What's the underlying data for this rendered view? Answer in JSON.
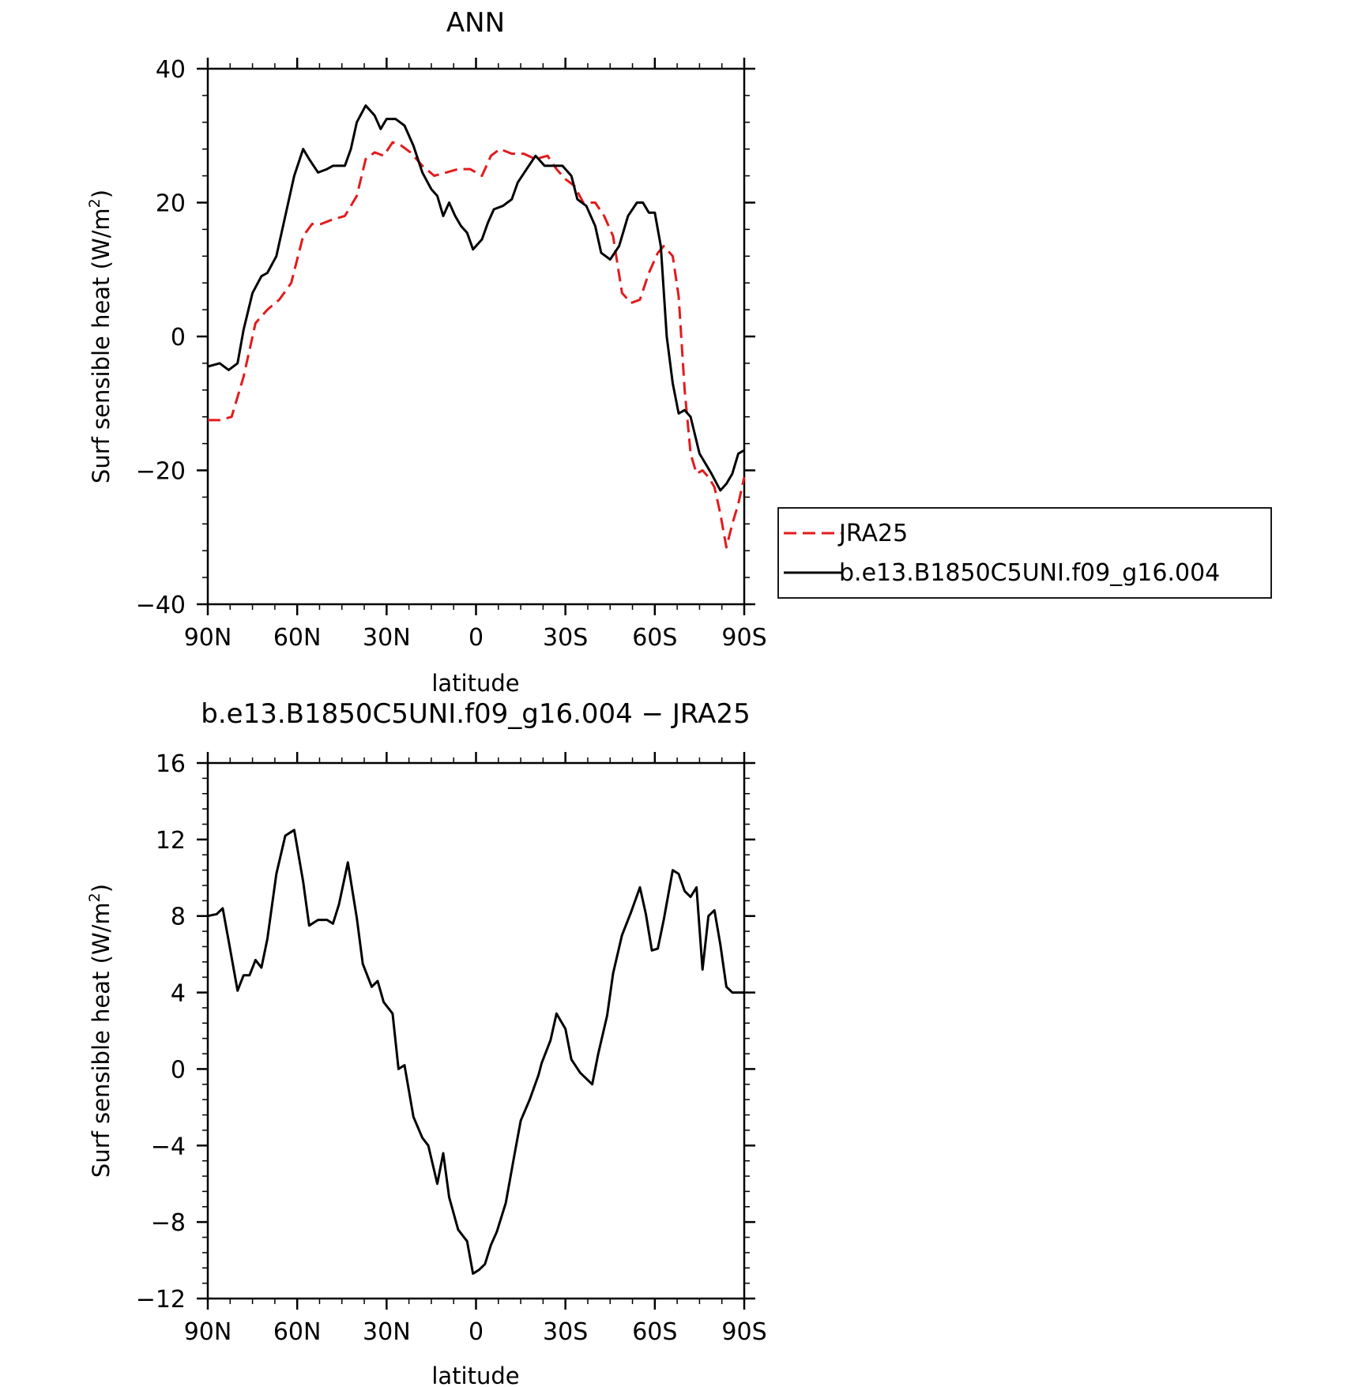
{
  "chart_data": [
    {
      "type": "line",
      "title": "ANN",
      "xlabel": "latitude",
      "ylabel": "Surf sensible heat (W/m²)",
      "ylabel_main": "Surf sensible heat (W/m",
      "ylabel_sup": "2",
      "ylabel_tail": ")",
      "xlim": [
        90,
        -90
      ],
      "ylim": [
        -40,
        40
      ],
      "x_ticks": [
        {
          "value": 90,
          "label": "90N"
        },
        {
          "value": 60,
          "label": "60N"
        },
        {
          "value": 30,
          "label": "30N"
        },
        {
          "value": 0,
          "label": "0"
        },
        {
          "value": -30,
          "label": "30S"
        },
        {
          "value": -60,
          "label": "60S"
        },
        {
          "value": -90,
          "label": "90S"
        }
      ],
      "y_ticks": [
        {
          "value": 40,
          "label": "40"
        },
        {
          "value": 20,
          "label": "20"
        },
        {
          "value": 0,
          "label": "0"
        },
        {
          "value": -20,
          "label": "−20"
        },
        {
          "value": -40,
          "label": "−40"
        }
      ],
      "grid": false,
      "legend_position": "right",
      "series": [
        {
          "name": "JRA25",
          "color": "#e31a1c",
          "dash": "dashed",
          "x": [
            90,
            86,
            82,
            78,
            74,
            70,
            66,
            62,
            58,
            55,
            52,
            48,
            44,
            40,
            37,
            34,
            31,
            28,
            25,
            22,
            18,
            14,
            10,
            6,
            2,
            -2,
            -5,
            -8,
            -12,
            -16,
            -20,
            -24,
            -27,
            -30,
            -33,
            -36,
            -40,
            -43,
            -46,
            -49,
            -52,
            -55,
            -58,
            -61,
            -63,
            -66,
            -68,
            -70,
            -72,
            -74,
            -76,
            -78,
            -80,
            -82,
            -84,
            -86,
            -88,
            -90
          ],
          "y": [
            -12.5,
            -12.5,
            -12,
            -6,
            2,
            4,
            5.5,
            8,
            15,
            16.8,
            16.8,
            17.5,
            18,
            21,
            26.5,
            27.5,
            27,
            29,
            28.5,
            27.5,
            25.5,
            24,
            24.5,
            25,
            25,
            24,
            27,
            28,
            27.3,
            27.3,
            26.5,
            27,
            25,
            23.5,
            22.5,
            20,
            20,
            18,
            15,
            6.5,
            5,
            5.5,
            9.5,
            12.5,
            13.5,
            12,
            6,
            -8,
            -17.5,
            -20.5,
            -20,
            -21,
            -22.5,
            -26.5,
            -31.5,
            -28,
            -25,
            -21
          ]
        },
        {
          "name": "b.e13.B1850C5UNI.f09_g16.004",
          "color": "#000000",
          "dash": "solid",
          "x": [
            90,
            86,
            83,
            80,
            78,
            75,
            72,
            70,
            67,
            64,
            61,
            58,
            56,
            53,
            50,
            48,
            46,
            44,
            42,
            40,
            37,
            34,
            32,
            30,
            27,
            24,
            21,
            18,
            15,
            13,
            11,
            9,
            7,
            5,
            3,
            1,
            -2,
            -4,
            -6,
            -9,
            -12,
            -14,
            -17,
            -20,
            -23,
            -25,
            -29,
            -32,
            -34,
            -37,
            -40,
            -42,
            -45,
            -48,
            -51,
            -54,
            -56,
            -58,
            -60,
            -62,
            -64,
            -66,
            -68,
            -70,
            -72,
            -75,
            -77,
            -79,
            -82,
            -84,
            -86,
            -88,
            -90
          ],
          "y": [
            -4.5,
            -4,
            -5,
            -4,
            1,
            6.5,
            9,
            9.5,
            12,
            18,
            24,
            28,
            26.5,
            24.5,
            25,
            25.5,
            25.5,
            25.5,
            28,
            32,
            34.5,
            33,
            31,
            32.5,
            32.5,
            31.5,
            28.5,
            24.5,
            22,
            21,
            18,
            20,
            18,
            16.5,
            15.5,
            13,
            14.5,
            17,
            19,
            19.5,
            20.5,
            23,
            25,
            27,
            25.5,
            25.5,
            25.5,
            24,
            20.5,
            19.5,
            16.5,
            12.5,
            11.5,
            13.5,
            18,
            20,
            20,
            18.5,
            18.5,
            13.5,
            0,
            -7,
            -11.5,
            -11,
            -12,
            -17.5,
            -19,
            -20.5,
            -23,
            -22,
            -20.5,
            -17.5,
            -17
          ]
        }
      ]
    },
    {
      "type": "line",
      "title": "b.e13.B1850C5UNI.f09_g16.004 − JRA25",
      "xlabel": "latitude",
      "ylabel": "Surf sensible heat (W/m²)",
      "ylabel_main": "Surf sensible heat (W/m",
      "ylabel_sup": "2",
      "ylabel_tail": ")",
      "xlim": [
        90,
        -90
      ],
      "ylim": [
        -12,
        16
      ],
      "x_ticks": [
        {
          "value": 90,
          "label": "90N"
        },
        {
          "value": 60,
          "label": "60N"
        },
        {
          "value": 30,
          "label": "30N"
        },
        {
          "value": 0,
          "label": "0"
        },
        {
          "value": -30,
          "label": "30S"
        },
        {
          "value": -60,
          "label": "60S"
        },
        {
          "value": -90,
          "label": "90S"
        }
      ],
      "y_ticks": [
        {
          "value": 16,
          "label": "16"
        },
        {
          "value": 12,
          "label": "12"
        },
        {
          "value": 8,
          "label": "8"
        },
        {
          "value": 4,
          "label": "4"
        },
        {
          "value": 0,
          "label": "0"
        },
        {
          "value": -4,
          "label": "−4"
        },
        {
          "value": -8,
          "label": "−8"
        },
        {
          "value": -12,
          "label": "−12"
        }
      ],
      "grid": false,
      "series": [
        {
          "color": "#000000",
          "dash": "solid",
          "x": [
            90,
            87,
            85,
            83,
            80,
            78,
            76,
            74,
            72,
            70,
            67,
            64,
            61,
            58,
            56,
            53,
            50,
            48,
            46,
            43,
            40,
            38,
            35,
            33,
            31,
            28,
            26,
            24,
            21,
            18,
            16,
            13,
            11,
            9,
            6,
            3,
            1,
            -1,
            -3,
            -5,
            -7,
            -10,
            -13,
            -15,
            -18,
            -21,
            -22,
            -25,
            -27,
            -30,
            -32,
            -35,
            -39,
            -41,
            -44,
            -46,
            -49,
            -52,
            -55,
            -57,
            -59,
            -61,
            -63,
            -66,
            -68,
            -70,
            -72,
            -74,
            -76,
            -78,
            -80,
            -82,
            -84,
            -86,
            -88,
            -90
          ],
          "y": [
            8,
            8.1,
            8.4,
            6.7,
            4.1,
            4.9,
            4.9,
            5.7,
            5.3,
            6.8,
            10.2,
            12.2,
            12.5,
            9.8,
            7.5,
            7.8,
            7.8,
            7.6,
            8.6,
            10.8,
            7.9,
            5.5,
            4.3,
            4.6,
            3.5,
            2.9,
            0,
            0.2,
            -2.5,
            -3.6,
            -4,
            -6,
            -4.4,
            -6.7,
            -8.4,
            -9,
            -10.7,
            -10.5,
            -10.2,
            -9.2,
            -8.5,
            -7,
            -4.4,
            -2.7,
            -1.6,
            -0.3,
            0.3,
            1.5,
            2.9,
            2.1,
            0.5,
            -0.2,
            -0.8,
            0.8,
            2.8,
            5,
            7,
            8.2,
            9.5,
            8.1,
            6.2,
            6.3,
            7.8,
            10.4,
            10.2,
            9.3,
            9,
            9.5,
            5.2,
            8,
            8.3,
            6.5,
            4.3,
            4,
            4,
            4
          ]
        }
      ]
    }
  ]
}
